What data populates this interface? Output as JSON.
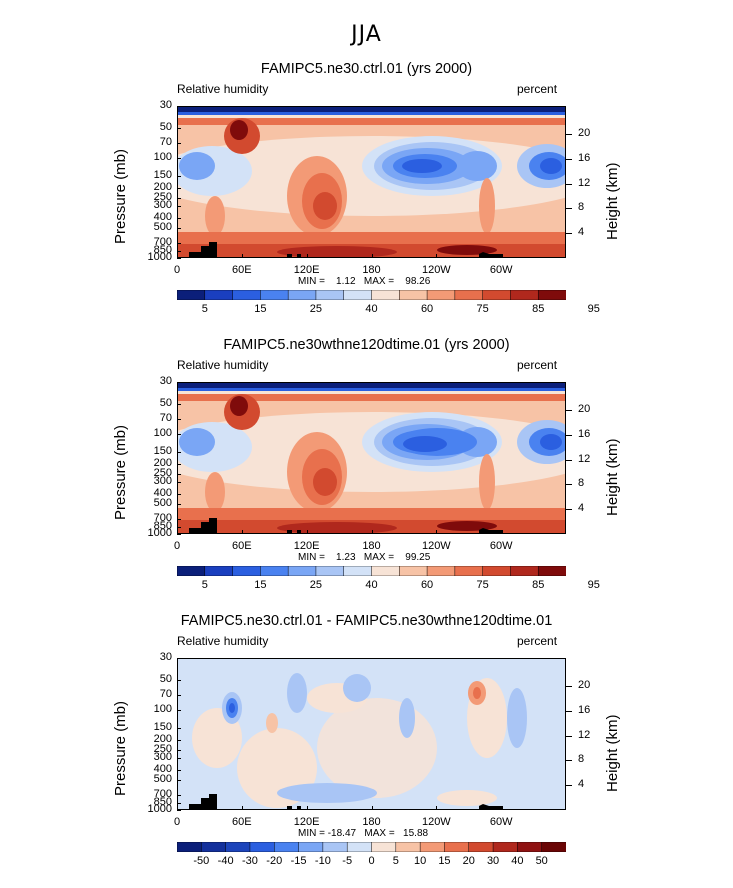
{
  "main_title": "JJA",
  "chart_data": [
    {
      "type": "heatmap",
      "title": "FAMIPC5.ne30.ctrl.01 (yrs 2000)",
      "variable": "Relative humidity",
      "units": "percent",
      "ylabel": "Pressure (mb)",
      "ylabel_right": "Height (km)",
      "pressure_ticks": [
        "1000",
        "850",
        "700",
        "500",
        "400",
        "300",
        "250",
        "200",
        "150",
        "100",
        "70",
        "50",
        "30"
      ],
      "height_ticks": [
        "4",
        "8",
        "12",
        "16",
        "20"
      ],
      "x_ticks": [
        "0",
        "60E",
        "120E",
        "180",
        "120W",
        "60W"
      ],
      "stats": "MIN =    1.12   MAX =    98.26",
      "colorbar_labels": [
        "5",
        "15",
        "25",
        "40",
        "60",
        "75",
        "85",
        "95"
      ],
      "colorbar_colors": [
        "#0b1f7a",
        "#1a3fbf",
        "#2b5fe0",
        "#4a82f0",
        "#7aa6f5",
        "#a9c5f5",
        "#d3e2f7",
        "#f7e3d6",
        "#f7c3a6",
        "#f39a76",
        "#e8704d",
        "#d24a2f",
        "#b0281d",
        "#7f0b0b"
      ]
    },
    {
      "type": "heatmap",
      "title": "FAMIPC5.ne30wthne120dtime.01 (yrs 2000)",
      "variable": "Relative humidity",
      "units": "percent",
      "ylabel": "Pressure (mb)",
      "ylabel_right": "Height (km)",
      "pressure_ticks": [
        "1000",
        "850",
        "700",
        "500",
        "400",
        "300",
        "250",
        "200",
        "150",
        "100",
        "70",
        "50",
        "30"
      ],
      "height_ticks": [
        "4",
        "8",
        "12",
        "16",
        "20"
      ],
      "x_ticks": [
        "0",
        "60E",
        "120E",
        "180",
        "120W",
        "60W"
      ],
      "stats": "MIN =    1.23   MAX =    99.25",
      "colorbar_labels": [
        "5",
        "15",
        "25",
        "40",
        "60",
        "75",
        "85",
        "95"
      ],
      "colorbar_colors": [
        "#0b1f7a",
        "#1a3fbf",
        "#2b5fe0",
        "#4a82f0",
        "#7aa6f5",
        "#a9c5f5",
        "#d3e2f7",
        "#f7e3d6",
        "#f7c3a6",
        "#f39a76",
        "#e8704d",
        "#d24a2f",
        "#b0281d",
        "#7f0b0b"
      ]
    },
    {
      "type": "heatmap",
      "title": "FAMIPC5.ne30.ctrl.01 - FAMIPC5.ne30wthne120dtime.01",
      "variable": "Relative humidity",
      "units": "percent",
      "ylabel": "Pressure (mb)",
      "ylabel_right": "Height (km)",
      "pressure_ticks": [
        "1000",
        "850",
        "700",
        "500",
        "400",
        "300",
        "250",
        "200",
        "150",
        "100",
        "70",
        "50",
        "30"
      ],
      "height_ticks": [
        "4",
        "8",
        "12",
        "16",
        "20"
      ],
      "x_ticks": [
        "0",
        "60E",
        "120E",
        "180",
        "120W",
        "60W"
      ],
      "stats": "MIN = -18.47   MAX =   15.88",
      "colorbar_labels": [
        "-50",
        "-40",
        "-30",
        "-20",
        "-15",
        "-10",
        "-5",
        "0",
        "5",
        "10",
        "15",
        "20",
        "30",
        "40",
        "50"
      ],
      "colorbar_colors": [
        "#0b1f7a",
        "#13309c",
        "#1c44bb",
        "#2b5fe0",
        "#4a82f0",
        "#7aa6f5",
        "#a9c5f5",
        "#d3e2f7",
        "#f7e3d6",
        "#f7c3a6",
        "#f39a76",
        "#e8704d",
        "#d24a2f",
        "#b0281d",
        "#8f1212",
        "#6a0505"
      ]
    }
  ]
}
